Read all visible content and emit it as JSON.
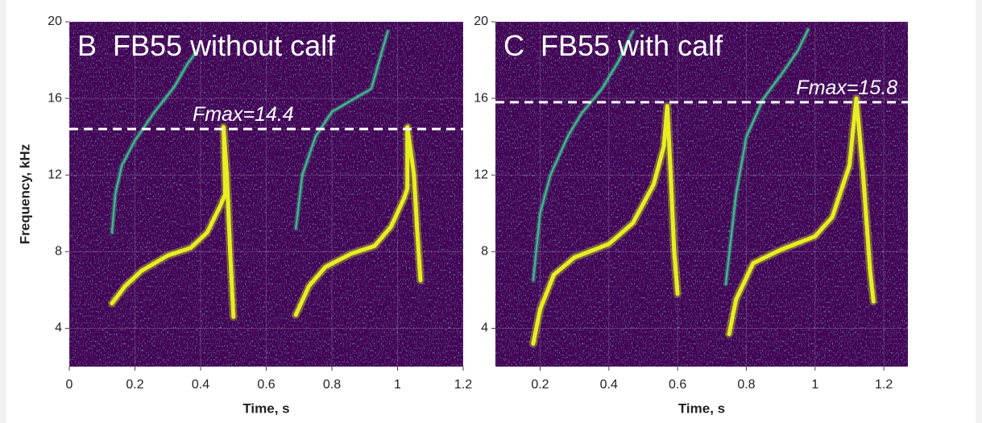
{
  "chart_data": [
    {
      "type": "spectrogram",
      "title": "B  FB55 without calf",
      "xlabel": "Time, s",
      "ylabel": "Frequency, kHz",
      "xlim": [
        0,
        1.2
      ],
      "xticks": [
        0,
        0.2,
        0.4,
        0.6,
        0.8,
        1,
        1.2
      ],
      "ylim": [
        2,
        20
      ],
      "yticks": [
        4,
        8,
        12,
        16,
        20
      ],
      "grid": true,
      "fmax": {
        "value": 14.4,
        "label": "Fmax=14.4"
      },
      "series": [
        {
          "color": "#e6ef1f",
          "x": [
            0.13,
            0.17,
            0.22,
            0.3,
            0.37,
            0.42,
            0.46,
            0.475,
            0.47,
            0.48,
            0.49,
            0.5,
            0.6,
            0.69,
            0.73,
            0.78,
            0.86,
            0.93,
            0.98,
            1.02,
            1.03,
            1.03,
            1.05,
            1.06,
            1.07
          ],
          "values": [
            5.3,
            6.2,
            7.0,
            7.8,
            8.2,
            9.0,
            10.4,
            11,
            14.5,
            12,
            8,
            4.6,
            null,
            4.7,
            6.2,
            7.2,
            7.9,
            8.3,
            9.3,
            10.8,
            11.3,
            14.5,
            12,
            9,
            6.5
          ]
        },
        {
          "color": "#3fb58a",
          "x": [
            0.13,
            0.14,
            0.16,
            0.2,
            0.26,
            0.32,
            0.36,
            0.39,
            0.6,
            0.69,
            0.71,
            0.75,
            0.8,
            0.87,
            0.92,
            0.95,
            0.97
          ],
          "values": [
            9,
            11,
            12.5,
            13.8,
            15.3,
            16.6,
            17.8,
            18.5,
            null,
            9.2,
            12,
            14,
            15.3,
            16,
            16.5,
            18.3,
            19.5
          ]
        }
      ]
    },
    {
      "type": "spectrogram",
      "title": "C  FB55 with calf",
      "xlabel": "Time, s",
      "xlim": [
        0.07,
        1.27
      ],
      "xticks": [
        0.2,
        0.4,
        0.6,
        0.8,
        1,
        1.2
      ],
      "ylim": [
        2,
        20
      ],
      "yticks": [
        4,
        8,
        12,
        16,
        20
      ],
      "grid": true,
      "fmax": {
        "value": 15.8,
        "label": "Fmax=15.8"
      },
      "series": [
        {
          "color": "#e6ef1f",
          "x": [
            0.18,
            0.2,
            0.24,
            0.3,
            0.4,
            0.47,
            0.53,
            0.56,
            0.57,
            0.58,
            0.59,
            0.6,
            0.7,
            0.75,
            0.77,
            0.82,
            0.9,
            1.0,
            1.05,
            1.1,
            1.12,
            1.14,
            1.16,
            1.17
          ],
          "values": [
            3.2,
            5,
            6.8,
            7.7,
            8.4,
            9.5,
            11.5,
            13.5,
            15.6,
            12,
            8,
            5.8,
            null,
            3.7,
            5.5,
            7.4,
            8.1,
            8.8,
            9.8,
            12.5,
            16,
            12,
            7,
            5.4
          ]
        },
        {
          "color": "#3fb58a",
          "x": [
            0.18,
            0.2,
            0.23,
            0.28,
            0.32,
            0.38,
            0.43,
            0.47,
            0.6,
            0.74,
            0.77,
            0.8,
            0.85,
            0.9,
            0.95,
            0.98
          ],
          "values": [
            6.5,
            10,
            12,
            14,
            15.2,
            16.5,
            18,
            19.5,
            null,
            6.3,
            11,
            14,
            16,
            17.2,
            18.5,
            19.6
          ]
        }
      ]
    }
  ]
}
